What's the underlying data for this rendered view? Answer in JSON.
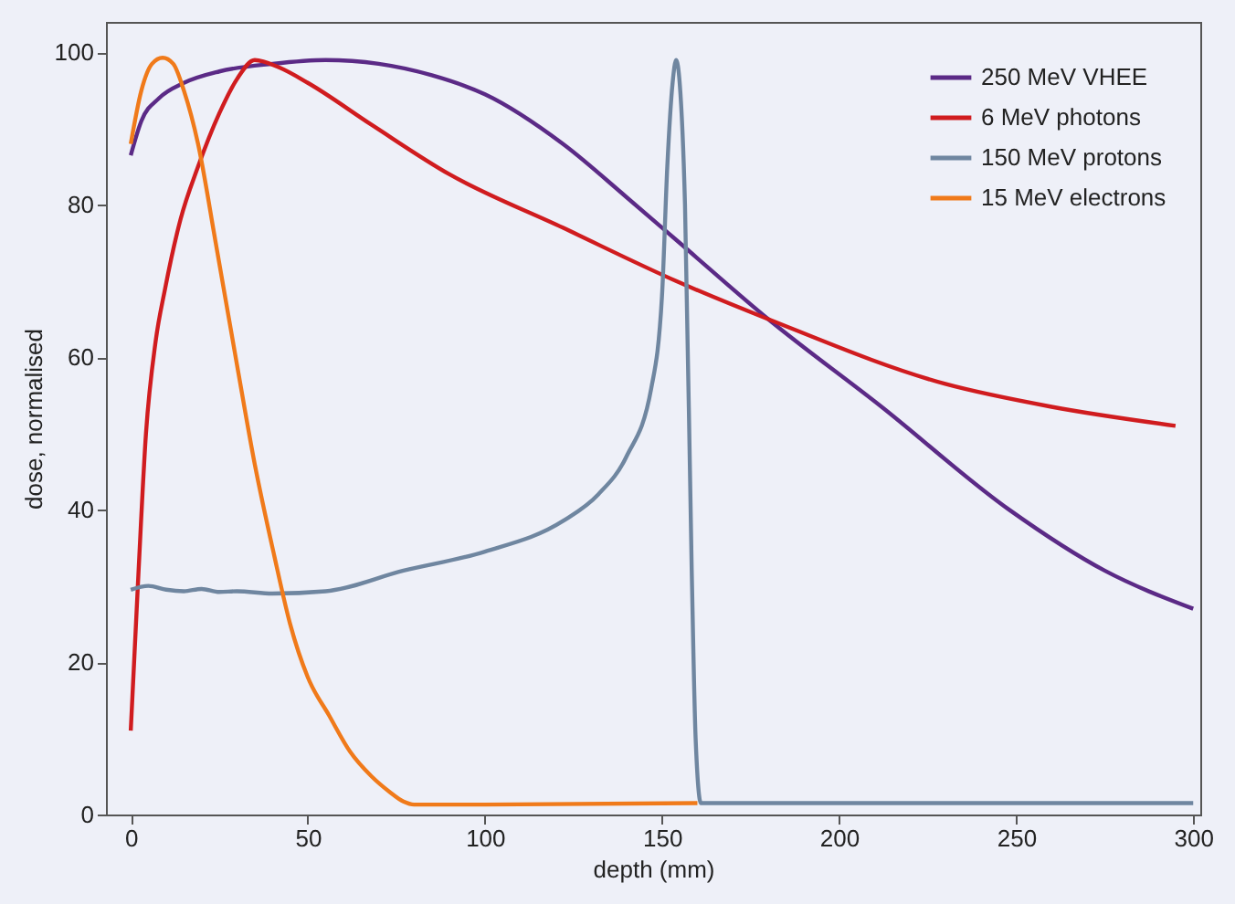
{
  "chart_data": {
    "type": "line",
    "xlabel": "depth (mm)",
    "ylabel": "dose, normalised",
    "xlim": [
      -7,
      302
    ],
    "ylim": [
      0,
      104
    ],
    "xticks": [
      0,
      50,
      100,
      150,
      200,
      250,
      300
    ],
    "yticks": [
      0,
      20,
      40,
      60,
      80,
      100
    ],
    "grid": false,
    "legend": "top right",
    "line_style": "solid",
    "marker": "none",
    "series": [
      {
        "name": "250 MeV VHEE",
        "color": "#5b2a86",
        "x": [
          0,
          3,
          8,
          15,
          25,
          40,
          55,
          70,
          85,
          100,
          122,
          140,
          155,
          180,
          212,
          248,
          275,
          300
        ],
        "values": [
          86.5,
          91,
          94,
          96,
          97.5,
          98.5,
          99,
          98.5,
          97,
          94.5,
          88,
          81,
          75,
          65,
          53.5,
          40,
          32,
          27
        ]
      },
      {
        "name": "6 MeV photons",
        "color": "#d01c1f",
        "x": [
          0,
          2,
          4.3,
          7,
          9.7,
          14,
          19,
          25,
          30,
          35,
          42,
          50,
          68,
          90,
          122,
          154,
          180,
          230,
          260,
          295
        ],
        "values": [
          11,
          30,
          50,
          62,
          69,
          78,
          85,
          92,
          96.5,
          99,
          98,
          96,
          90.5,
          84,
          77,
          70,
          65,
          56.5,
          53.5,
          51
        ]
      },
      {
        "name": "150 MeV protons",
        "color": "#6f86a0",
        "x": [
          0,
          5,
          10,
          15,
          20,
          25,
          30,
          40,
          55,
          77,
          100,
          122,
          132,
          140,
          147,
          150,
          151.5,
          153,
          154,
          155,
          156.5,
          158.4,
          159.5,
          161,
          300
        ],
        "values": [
          29.5,
          30,
          29.5,
          29.3,
          29.6,
          29.2,
          29.3,
          29,
          29.3,
          32,
          34.5,
          38.5,
          42,
          47,
          56,
          68,
          85,
          96,
          99,
          96,
          80,
          32,
          10,
          1.5,
          1.5
        ]
      },
      {
        "name": "15 MeV electrons",
        "color": "#f07a1a",
        "x": [
          0,
          3,
          6,
          9,
          12,
          15,
          19,
          24,
          30,
          35,
          40.5,
          45,
          50,
          56,
          62,
          68,
          73,
          77,
          80,
          100,
          160
        ],
        "values": [
          88,
          95,
          98.5,
          99.3,
          98.5,
          95,
          88,
          75,
          59,
          46,
          34,
          25,
          18,
          13,
          8.2,
          5,
          3,
          1.7,
          1.3,
          1.3,
          1.5
        ]
      }
    ]
  }
}
